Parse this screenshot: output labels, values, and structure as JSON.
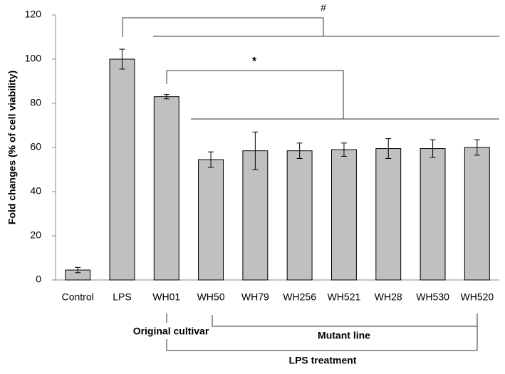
{
  "chart_data": {
    "type": "bar",
    "y_label": "Fold changes (% of cell viability)",
    "categories": [
      "Control",
      "LPS",
      "WH01",
      "WH50",
      "WH79",
      "WH256",
      "WH521",
      "WH28",
      "WH530",
      "WH520"
    ],
    "values": [
      4.5,
      100,
      83,
      54.5,
      58.5,
      58.5,
      59,
      59.5,
      59.5,
      60
    ],
    "errors": [
      1.2,
      4.5,
      1,
      3.5,
      8.5,
      3.5,
      3,
      4.5,
      4,
      3.5
    ],
    "color": "#c0c0c0",
    "ylim": [
      0,
      120
    ],
    "yticks": [
      0,
      20,
      40,
      60,
      80,
      100,
      120
    ],
    "annotations": [
      "#",
      "*",
      "Original cultivar",
      "Mutant line",
      "LPS treatment"
    ]
  }
}
